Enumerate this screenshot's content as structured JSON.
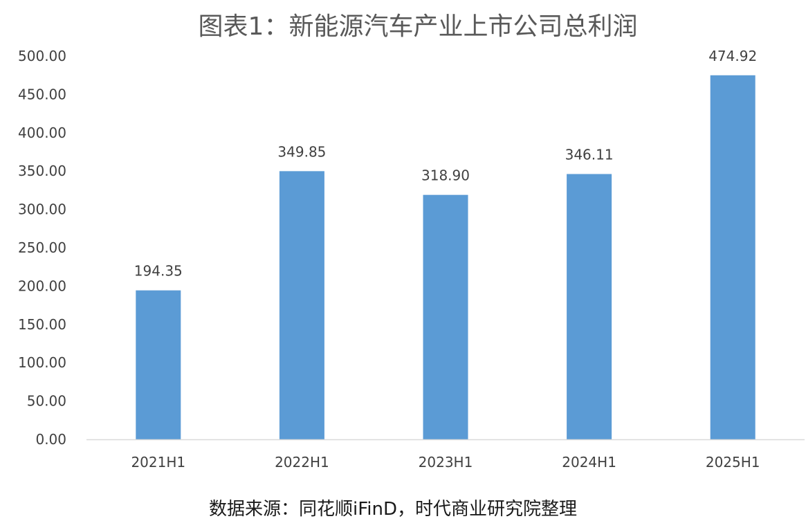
{
  "chart_data": {
    "type": "bar",
    "title": "图表1：新能源汽车产业上市公司总利润",
    "categories": [
      "2021H1",
      "2022H1",
      "2023H1",
      "2024H1",
      "2025H1"
    ],
    "values": [
      194.35,
      349.85,
      318.9,
      346.11,
      474.92
    ],
    "data_labels": [
      "194.35",
      "349.85",
      "318.90",
      "346.11",
      "474.92"
    ],
    "y_ticks": [
      "0.00",
      "50.00",
      "100.00",
      "150.00",
      "200.00",
      "250.00",
      "300.00",
      "350.00",
      "400.00",
      "450.00",
      "500.00"
    ],
    "ylim": [
      0,
      500
    ],
    "xlabel": "",
    "ylabel": "",
    "grid": false,
    "legend": "none",
    "bar_color": "#5B9BD5",
    "axis_color": "#D9D9D9"
  },
  "source_note": "数据来源：同花顺iFinD，时代商业研究院整理"
}
